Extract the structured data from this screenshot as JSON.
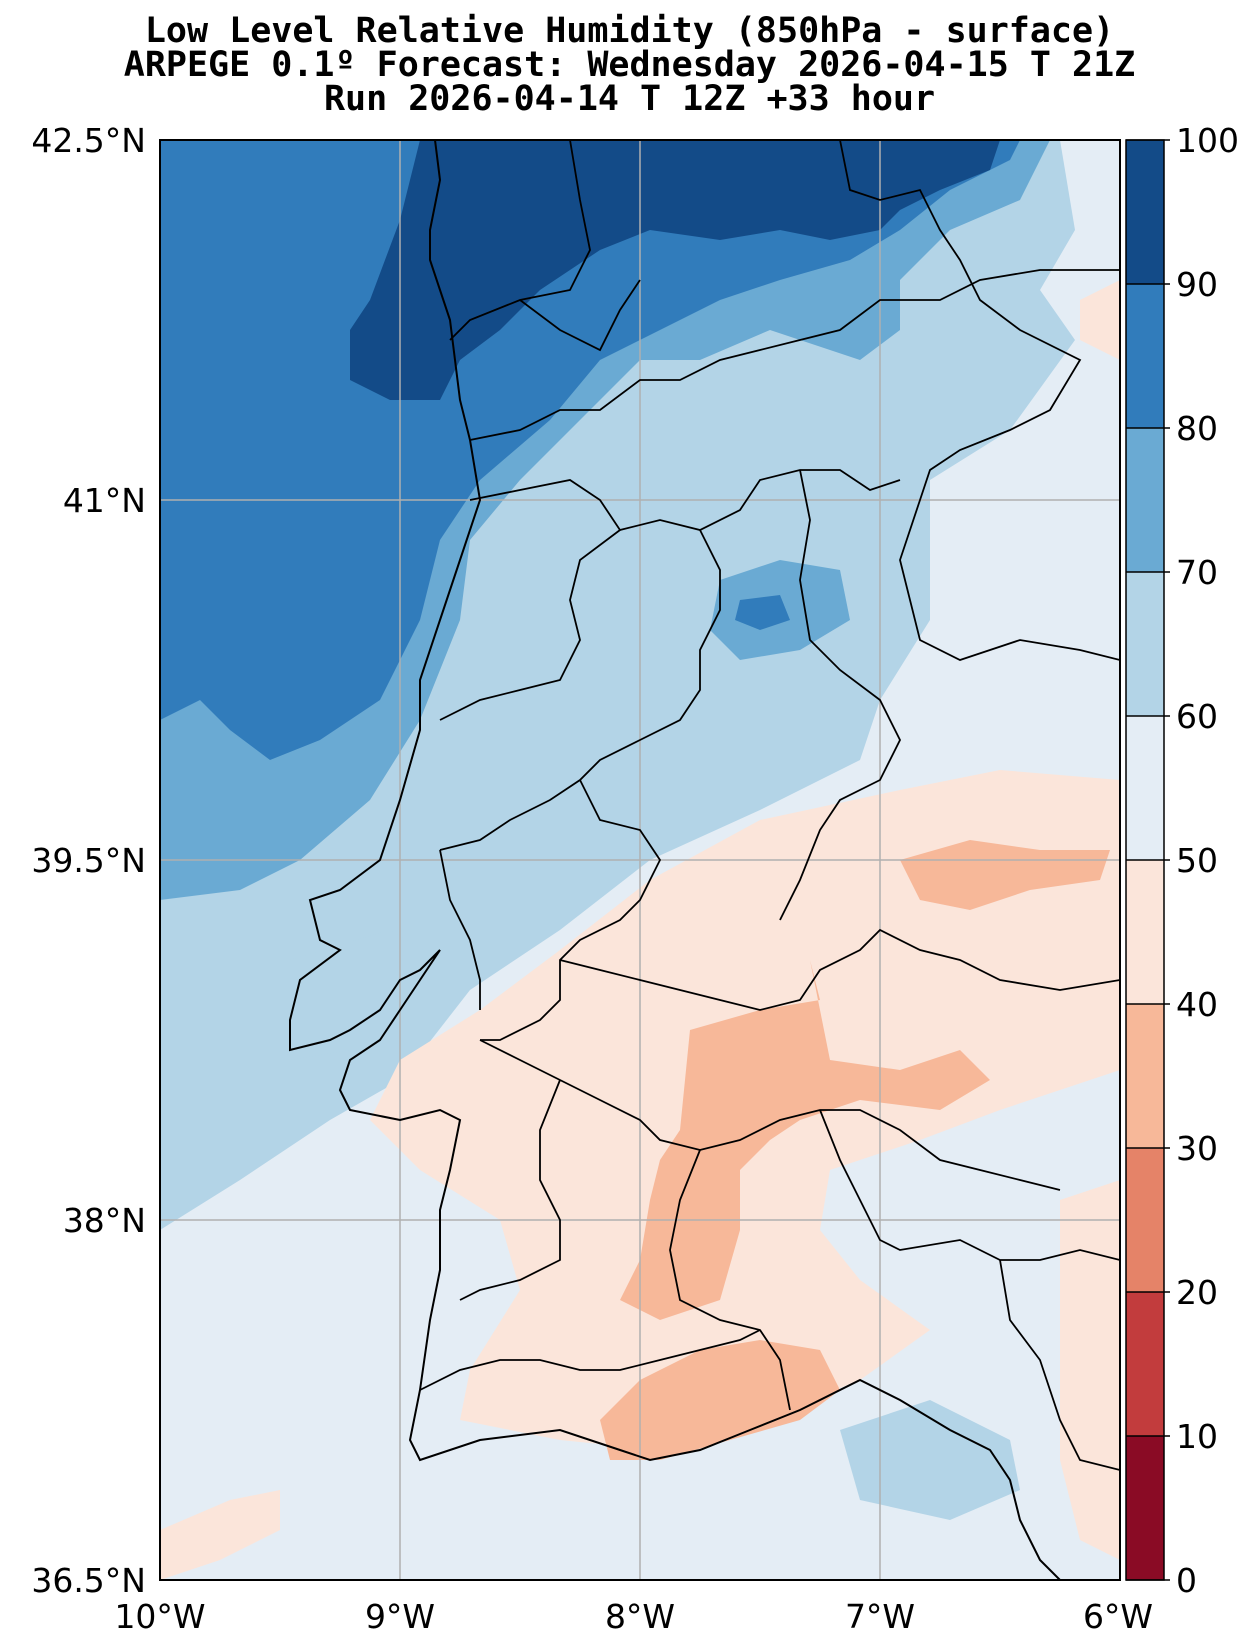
{
  "title": {
    "line1": "Low Level Relative Humidity (850hPa - surface)",
    "line2": "ARPEGE 0.1º Forecast: Wednesday 2026-04-15 T 21Z",
    "line3": "Run 2026-04-14 T 12Z +33 hour"
  },
  "map": {
    "lon_range": [
      -10,
      -6
    ],
    "lat_range": [
      36.5,
      42.5
    ],
    "x_ticks": [
      "10°W",
      "9°W",
      "8°W",
      "7°W",
      "6°W"
    ],
    "y_ticks": [
      "42.5°N",
      "41°N",
      "39.5°N",
      "38°N",
      "36.5°N"
    ],
    "grid": true
  },
  "colorbar": {
    "ticks": [
      "100",
      "90",
      "80",
      "70",
      "60",
      "50",
      "40",
      "30",
      "20",
      "10",
      "0"
    ],
    "levels": [
      0,
      10,
      20,
      30,
      40,
      50,
      60,
      70,
      80,
      90,
      100
    ],
    "colors": [
      "#8a0b25",
      "#c23c3d",
      "#e58368",
      "#f7b899",
      "#fbe5da",
      "#e4edf5",
      "#b3d4e7",
      "#6aaad3",
      "#317cbb",
      "#134b88"
    ]
  }
}
